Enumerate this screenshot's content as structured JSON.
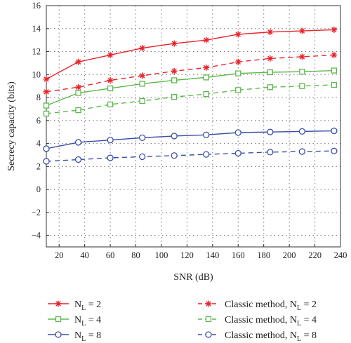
{
  "chart_data": {
    "type": "line",
    "xlabel": "SNR (dB)",
    "ylabel": "Secrecy capacity (bits)",
    "xlim": [
      10,
      240
    ],
    "ylim": [
      -5,
      16
    ],
    "x_ticks": [
      20,
      40,
      60,
      80,
      100,
      120,
      140,
      160,
      180,
      200,
      220,
      240
    ],
    "y_ticks": [
      -4,
      -2,
      0,
      2,
      4,
      6,
      8,
      10,
      12,
      14,
      16
    ],
    "grid": true,
    "legend_position": "bottom",
    "x": [
      10,
      35,
      60,
      85,
      110,
      135,
      160,
      185,
      210,
      235
    ],
    "series": [
      {
        "name": "N_L = 2",
        "name_base": "N",
        "name_sub": "L",
        "name_tail": " = 2",
        "color": "#e8232a",
        "dash": "solid",
        "marker": "star",
        "values": [
          9.6,
          11.1,
          11.7,
          12.3,
          12.7,
          13.0,
          13.5,
          13.7,
          13.8,
          13.9
        ]
      },
      {
        "name": "Classic method, N_L = 2",
        "name_base": "Classic method, N",
        "name_sub": "L",
        "name_tail": " = 2",
        "color": "#e8232a",
        "dash": "dashed",
        "marker": "star",
        "values": [
          8.5,
          8.9,
          9.5,
          9.9,
          10.3,
          10.6,
          11.1,
          11.4,
          11.55,
          11.7
        ]
      },
      {
        "name": "N_L = 4",
        "name_base": "N",
        "name_sub": "L",
        "name_tail": " = 4",
        "color": "#5bb84a",
        "dash": "solid",
        "marker": "square",
        "values": [
          7.3,
          8.4,
          8.8,
          9.2,
          9.5,
          9.75,
          10.1,
          10.2,
          10.25,
          10.35
        ]
      },
      {
        "name": "Classic method, N_L = 4",
        "name_base": "Classic method, N",
        "name_sub": "L",
        "name_tail": " = 4",
        "color": "#5bb84a",
        "dash": "dashed",
        "marker": "square",
        "values": [
          6.6,
          6.9,
          7.4,
          7.7,
          8.05,
          8.3,
          8.65,
          8.9,
          9.0,
          9.1
        ]
      },
      {
        "name": "N_L = 8",
        "name_base": "N",
        "name_sub": "L",
        "name_tail": " = 8",
        "color": "#3b4fa6",
        "dash": "solid",
        "marker": "circle",
        "values": [
          3.55,
          4.1,
          4.3,
          4.5,
          4.65,
          4.75,
          4.95,
          5.0,
          5.05,
          5.1
        ]
      },
      {
        "name": "Classic method, N_L = 8",
        "name_base": "Classic method, N",
        "name_sub": "L",
        "name_tail": " = 8",
        "color": "#3b4fa6",
        "dash": "dashed",
        "marker": "circle",
        "values": [
          2.45,
          2.6,
          2.75,
          2.85,
          2.95,
          3.05,
          3.15,
          3.25,
          3.3,
          3.35
        ]
      }
    ]
  }
}
